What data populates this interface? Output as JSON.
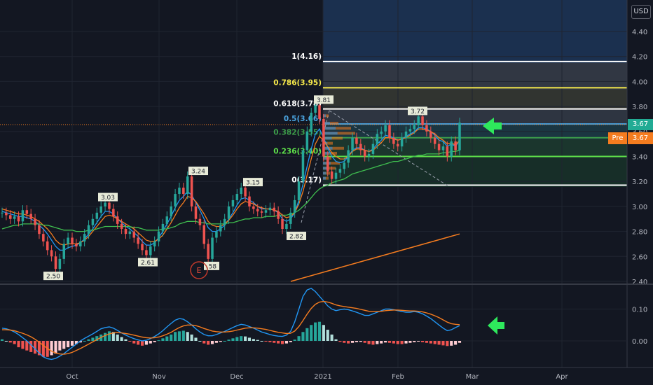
{
  "header": {
    "currency": "USD"
  },
  "price_scale": {
    "ticks": [
      "4.40",
      "4.20",
      "4.00",
      "3.80",
      "3.60",
      "3.40",
      "3.20",
      "3.00",
      "2.80",
      "2.60",
      "2.40"
    ],
    "current_price": "3.67",
    "pre_market_label": "Pre",
    "pre_market_price": "3.67"
  },
  "indicator_scale": {
    "ticks": [
      "0.10",
      "0.00"
    ]
  },
  "time_axis": {
    "labels": [
      "Oct",
      "Nov",
      "Dec",
      "2021",
      "Feb",
      "Mar",
      "Apr"
    ]
  },
  "fib_levels": [
    {
      "label": "1(4.16)",
      "value": 4.16,
      "color": "#ffffff"
    },
    {
      "label": "0.786(3.95)",
      "value": 3.95,
      "color": "#f6e94a"
    },
    {
      "label": "0.618(3.78)",
      "value": 3.78,
      "color": "#ffffff"
    },
    {
      "label": "0.5(3.66)",
      "value": 3.66,
      "color": "#4aa3df"
    },
    {
      "label": "0.382(3.55)",
      "value": 3.55,
      "color": "#3d9e4a"
    },
    {
      "label": "0.236(3.40)",
      "value": 3.4,
      "color": "#5ee04a"
    },
    {
      "label": "0(3.17)",
      "value": 3.17,
      "color": "#ffffff"
    }
  ],
  "price_callouts": [
    {
      "label": "2.50",
      "value": 2.5
    },
    {
      "label": "3.03",
      "value": 3.03
    },
    {
      "label": "2.61",
      "value": 2.61
    },
    {
      "label": "3.24",
      "value": 3.24
    },
    {
      "label": ".58",
      "value": 2.58
    },
    {
      "label": "3.15",
      "value": 3.15
    },
    {
      "label": "2.82",
      "value": 2.82
    },
    {
      "label": "3.81",
      "value": 3.81
    },
    {
      "label": "3.72",
      "value": 3.72
    }
  ],
  "earnings_marker": "E",
  "chart_data": [
    {
      "type": "candlestick",
      "title": "",
      "xlabel": "",
      "ylabel": "",
      "x_labels": [
        "Oct",
        "Nov",
        "Dec",
        "2021",
        "Feb",
        "Mar",
        "Apr"
      ],
      "ylim": [
        2.4,
        4.5
      ],
      "y_ticks": [
        2.4,
        2.6,
        2.8,
        3.0,
        3.2,
        3.4,
        3.6,
        3.8,
        4.0,
        4.2,
        4.4
      ],
      "closes": [
        2.95,
        2.93,
        2.9,
        2.92,
        2.88,
        2.97,
        2.94,
        2.9,
        2.85,
        2.78,
        2.72,
        2.65,
        2.6,
        2.5,
        2.58,
        2.7,
        2.75,
        2.7,
        2.68,
        2.72,
        2.78,
        2.85,
        2.9,
        2.95,
        3.0,
        3.03,
        2.98,
        2.92,
        2.86,
        2.82,
        2.78,
        2.8,
        2.75,
        2.7,
        2.65,
        2.61,
        2.68,
        2.72,
        2.8,
        2.86,
        2.92,
        3.0,
        3.1,
        3.15,
        3.1,
        3.24,
        3.0,
        2.9,
        2.85,
        2.7,
        2.58,
        2.75,
        2.8,
        2.85,
        2.9,
        3.0,
        3.05,
        3.1,
        3.15,
        3.08,
        3.0,
        2.98,
        2.96,
        2.95,
        2.97,
        2.99,
        2.96,
        2.9,
        2.82,
        2.86,
        2.95,
        3.05,
        3.2,
        3.45,
        3.6,
        3.75,
        3.81,
        3.7,
        3.4,
        3.28,
        3.22,
        3.27,
        3.3,
        3.35,
        3.45,
        3.55,
        3.5,
        3.45,
        3.4,
        3.42,
        3.5,
        3.58,
        3.6,
        3.65,
        3.55,
        3.5,
        3.48,
        3.55,
        3.6,
        3.62,
        3.65,
        3.72,
        3.65,
        3.6,
        3.55,
        3.5,
        3.45,
        3.48,
        3.4,
        3.52,
        3.45,
        3.67
      ],
      "series": [
        {
          "name": "",
          "color": "#2196f3",
          "values": [
            2.96,
            2.95,
            2.94,
            2.93,
            2.92,
            2.92,
            2.91,
            2.9,
            2.88,
            2.85,
            2.82,
            2.78,
            2.73,
            2.68,
            2.65,
            2.65,
            2.67,
            2.68,
            2.69,
            2.71,
            2.74,
            2.78,
            2.82,
            2.87,
            2.92,
            2.96,
            2.96,
            2.94,
            2.9,
            2.87,
            2.84,
            2.82,
            2.79,
            2.76,
            2.72,
            2.69,
            2.69,
            2.71,
            2.75,
            2.8,
            2.86,
            2.92,
            2.99,
            3.05,
            3.08,
            3.12,
            3.09,
            3.03,
            2.97,
            2.9,
            2.83,
            2.8,
            2.8,
            2.82,
            2.85,
            2.9,
            2.95,
            3.01,
            3.06,
            3.07,
            3.05,
            3.03,
            3.0,
            2.98,
            2.98,
            2.98,
            2.97,
            2.95,
            2.9,
            2.88,
            2.9,
            2.95,
            3.05,
            3.18,
            3.32,
            3.46,
            3.58,
            3.62,
            3.55,
            3.47,
            3.4,
            3.36,
            3.35,
            3.36,
            3.4,
            3.45,
            3.47,
            3.47,
            3.45,
            3.44,
            3.46,
            3.5,
            3.53,
            3.57,
            3.56,
            3.55,
            3.53,
            3.54,
            3.56,
            3.58,
            3.6,
            3.63,
            3.63,
            3.62,
            3.6,
            3.57,
            3.53,
            3.52,
            3.48,
            3.5,
            3.48,
            3.53
          ]
        },
        {
          "name": "",
          "color": "#f57c1f",
          "values": [
            2.98,
            2.97,
            2.96,
            2.95,
            2.94,
            2.94,
            2.93,
            2.92,
            2.9,
            2.88,
            2.85,
            2.82,
            2.78,
            2.73,
            2.7,
            2.69,
            2.7,
            2.7,
            2.7,
            2.71,
            2.73,
            2.76,
            2.8,
            2.84,
            2.88,
            2.92,
            2.93,
            2.92,
            2.9,
            2.88,
            2.86,
            2.84,
            2.82,
            2.79,
            2.76,
            2.73,
            2.72,
            2.72,
            2.74,
            2.77,
            2.82,
            2.87,
            2.93,
            2.99,
            3.03,
            3.08,
            3.07,
            3.04,
            2.99,
            2.94,
            2.88,
            2.85,
            2.84,
            2.84,
            2.86,
            2.89,
            2.93,
            2.98,
            3.02,
            3.04,
            3.03,
            3.02,
            3.0,
            2.99,
            2.98,
            2.98,
            2.97,
            2.96,
            2.93,
            2.91,
            2.92,
            2.95,
            3.02,
            3.12,
            3.25,
            3.38,
            3.5,
            3.56,
            3.53,
            3.48,
            3.43,
            3.4,
            3.38,
            3.38,
            3.4,
            3.44,
            3.46,
            3.46,
            3.45,
            3.44,
            3.45,
            3.48,
            3.51,
            3.55,
            3.55,
            3.54,
            3.53,
            3.54,
            3.55,
            3.57,
            3.59,
            3.62,
            3.62,
            3.61,
            3.6,
            3.58,
            3.55,
            3.53,
            3.5,
            3.51,
            3.49,
            3.53
          ]
        },
        {
          "name": "",
          "color": "#3fbf4f",
          "values": [
            2.82,
            2.83,
            2.84,
            2.85,
            2.85,
            2.86,
            2.86,
            2.86,
            2.86,
            2.86,
            2.85,
            2.85,
            2.84,
            2.83,
            2.82,
            2.81,
            2.81,
            2.81,
            2.8,
            2.8,
            2.8,
            2.81,
            2.81,
            2.82,
            2.83,
            2.84,
            2.84,
            2.84,
            2.84,
            2.84,
            2.84,
            2.84,
            2.83,
            2.83,
            2.82,
            2.81,
            2.81,
            2.81,
            2.81,
            2.82,
            2.82,
            2.83,
            2.84,
            2.86,
            2.87,
            2.88,
            2.88,
            2.88,
            2.87,
            2.87,
            2.86,
            2.86,
            2.86,
            2.86,
            2.86,
            2.87,
            2.87,
            2.88,
            2.89,
            2.9,
            2.9,
            2.91,
            2.91,
            2.91,
            2.92,
            2.92,
            2.92,
            2.93,
            2.93,
            2.93,
            2.94,
            2.95,
            2.97,
            3.0,
            3.03,
            3.07,
            3.11,
            3.14,
            3.16,
            3.17,
            3.19,
            3.2,
            3.21,
            3.22,
            3.24,
            3.26,
            3.27,
            3.28,
            3.29,
            3.3,
            3.31,
            3.32,
            3.33,
            3.34,
            3.35,
            3.36,
            3.36,
            3.37,
            3.38,
            3.39,
            3.4,
            3.41,
            3.41,
            3.42,
            3.42,
            3.42,
            3.42,
            3.43,
            3.43,
            3.44,
            3.44,
            3.45
          ]
        }
      ],
      "long_ma": {
        "name": "",
        "color": "#f57c1f",
        "start": 2.4,
        "end": 2.78
      }
    },
    {
      "type": "histogram",
      "title": "",
      "ylim": [
        -0.07,
        0.19
      ],
      "y_ticks": [
        0.0,
        0.1
      ],
      "values": [
        0.005,
        0.0,
        -0.005,
        -0.01,
        -0.02,
        -0.025,
        -0.03,
        -0.035,
        -0.04,
        -0.045,
        -0.05,
        -0.05,
        -0.045,
        -0.04,
        -0.03,
        -0.025,
        -0.02,
        -0.015,
        -0.01,
        -0.005,
        0.0,
        0.005,
        0.01,
        0.015,
        0.02,
        0.025,
        0.03,
        0.028,
        0.02,
        0.012,
        0.005,
        -0.002,
        -0.008,
        -0.012,
        -0.015,
        -0.012,
        -0.008,
        -0.004,
        0.002,
        0.008,
        0.014,
        0.02,
        0.028,
        0.03,
        0.032,
        0.028,
        0.02,
        0.01,
        0.0,
        -0.008,
        -0.012,
        -0.01,
        -0.006,
        -0.003,
        0.0,
        0.004,
        0.008,
        0.012,
        0.015,
        0.014,
        0.01,
        0.006,
        0.003,
        0.0,
        -0.002,
        -0.004,
        -0.006,
        -0.008,
        -0.01,
        -0.008,
        -0.004,
        0.004,
        0.015,
        0.028,
        0.04,
        0.05,
        0.058,
        0.06,
        0.05,
        0.035,
        0.02,
        0.005,
        -0.003,
        -0.006,
        -0.008,
        -0.006,
        -0.004,
        -0.003,
        -0.006,
        -0.01,
        -0.012,
        -0.01,
        -0.008,
        -0.005,
        -0.006,
        -0.008,
        -0.01,
        -0.01,
        -0.008,
        -0.006,
        -0.004,
        -0.002,
        -0.004,
        -0.006,
        -0.008,
        -0.01,
        -0.012,
        -0.014,
        -0.016,
        -0.015,
        -0.012,
        -0.006
      ],
      "series": [
        {
          "name": "",
          "color": "#2196f3",
          "values": [
            0.04,
            0.038,
            0.034,
            0.028,
            0.02,
            0.01,
            0.0,
            -0.012,
            -0.025,
            -0.038,
            -0.05,
            -0.056,
            -0.058,
            -0.055,
            -0.048,
            -0.04,
            -0.03,
            -0.02,
            -0.01,
            0.0,
            0.008,
            0.015,
            0.022,
            0.03,
            0.038,
            0.042,
            0.044,
            0.04,
            0.033,
            0.025,
            0.018,
            0.012,
            0.007,
            0.003,
            0.0,
            0.002,
            0.007,
            0.014,
            0.022,
            0.032,
            0.044,
            0.055,
            0.065,
            0.07,
            0.068,
            0.06,
            0.05,
            0.038,
            0.028,
            0.02,
            0.016,
            0.016,
            0.02,
            0.025,
            0.03,
            0.036,
            0.042,
            0.048,
            0.052,
            0.05,
            0.045,
            0.04,
            0.034,
            0.028,
            0.024,
            0.02,
            0.017,
            0.015,
            0.014,
            0.018,
            0.03,
            0.06,
            0.1,
            0.14,
            0.16,
            0.165,
            0.155,
            0.14,
            0.125,
            0.11,
            0.1,
            0.095,
            0.098,
            0.1,
            0.098,
            0.094,
            0.09,
            0.085,
            0.08,
            0.08,
            0.085,
            0.09,
            0.095,
            0.1,
            0.1,
            0.098,
            0.095,
            0.092,
            0.09,
            0.09,
            0.092,
            0.09,
            0.085,
            0.078,
            0.07,
            0.06,
            0.05,
            0.04,
            0.032,
            0.035,
            0.042,
            0.048
          ]
        },
        {
          "name": "",
          "color": "#f57c1f",
          "values": [
            0.035,
            0.035,
            0.034,
            0.032,
            0.028,
            0.024,
            0.019,
            0.013,
            0.005,
            -0.004,
            -0.014,
            -0.024,
            -0.032,
            -0.038,
            -0.041,
            -0.042,
            -0.04,
            -0.036,
            -0.03,
            -0.024,
            -0.017,
            -0.01,
            -0.003,
            0.004,
            0.011,
            0.017,
            0.022,
            0.025,
            0.026,
            0.025,
            0.023,
            0.021,
            0.018,
            0.015,
            0.012,
            0.01,
            0.009,
            0.01,
            0.012,
            0.016,
            0.021,
            0.027,
            0.035,
            0.042,
            0.047,
            0.05,
            0.05,
            0.048,
            0.044,
            0.039,
            0.035,
            0.031,
            0.029,
            0.028,
            0.028,
            0.029,
            0.031,
            0.034,
            0.037,
            0.04,
            0.041,
            0.041,
            0.04,
            0.038,
            0.036,
            0.033,
            0.03,
            0.027,
            0.025,
            0.023,
            0.024,
            0.031,
            0.045,
            0.064,
            0.084,
            0.102,
            0.115,
            0.122,
            0.124,
            0.122,
            0.118,
            0.113,
            0.11,
            0.108,
            0.106,
            0.104,
            0.102,
            0.099,
            0.096,
            0.093,
            0.092,
            0.092,
            0.093,
            0.095,
            0.096,
            0.097,
            0.097,
            0.096,
            0.095,
            0.094,
            0.094,
            0.093,
            0.091,
            0.088,
            0.084,
            0.079,
            0.073,
            0.066,
            0.059,
            0.054,
            0.052,
            0.051
          ]
        }
      ]
    }
  ]
}
